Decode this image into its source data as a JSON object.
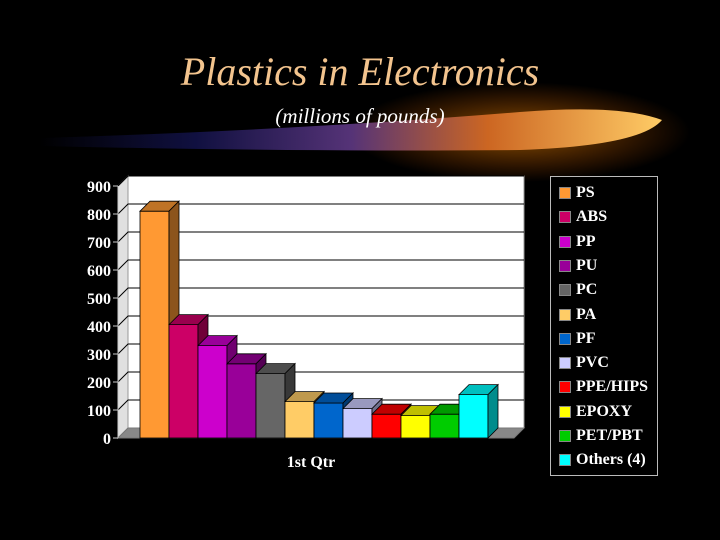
{
  "title": "Plastics in Electronics",
  "subtitle": "(millions of pounds)",
  "chart_data": {
    "type": "bar",
    "categories": [
      "1st Qtr"
    ],
    "series": [
      {
        "name": "PS",
        "values": [
          810
        ],
        "color": "#ff9933"
      },
      {
        "name": "ABS",
        "values": [
          405
        ],
        "color": "#cc0066"
      },
      {
        "name": "PP",
        "values": [
          330
        ],
        "color": "#cc00cc"
      },
      {
        "name": "PU",
        "values": [
          265
        ],
        "color": "#990099"
      },
      {
        "name": "PC",
        "values": [
          230
        ],
        "color": "#666666"
      },
      {
        "name": "PA",
        "values": [
          130
        ],
        "color": "#ffcc66"
      },
      {
        "name": "PF",
        "values": [
          125
        ],
        "color": "#0066cc"
      },
      {
        "name": "PVC",
        "values": [
          105
        ],
        "color": "#ccccff"
      },
      {
        "name": "PPE/HIPS",
        "values": [
          85
        ],
        "color": "#ff0000"
      },
      {
        "name": "EPOXY",
        "values": [
          80
        ],
        "color": "#ffff00"
      },
      {
        "name": "PET/PBT",
        "values": [
          85
        ],
        "color": "#00cc00"
      },
      {
        "name": "Others (4)",
        "values": [
          155
        ],
        "color": "#00ffff"
      }
    ],
    "ylim": [
      0,
      900
    ],
    "yticks": [
      "0",
      "100",
      "200",
      "300",
      "400",
      "500",
      "600",
      "700",
      "800",
      "900"
    ],
    "grid": true,
    "legend_position": "right"
  }
}
